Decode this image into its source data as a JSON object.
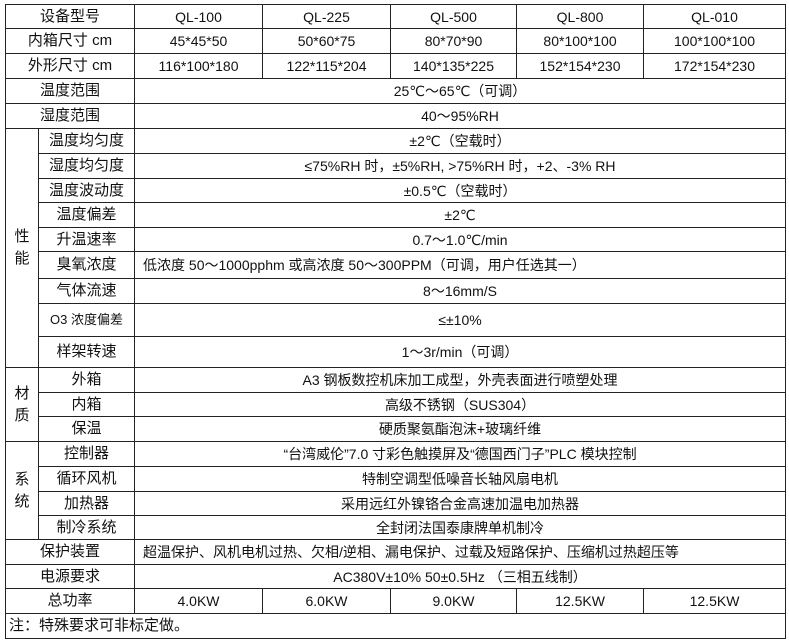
{
  "header": {
    "label": "设备型号",
    "models": [
      "QL-100",
      "QL-225",
      "QL-500",
      "QL-800",
      "QL-010"
    ]
  },
  "inner_size": {
    "label": "内箱尺寸 cm",
    "values": [
      "45*45*50",
      "50*60*75",
      "80*70*90",
      "80*100*100",
      "100*100*100"
    ]
  },
  "outer_size": {
    "label": "外形尺寸 cm",
    "values": [
      "116*100*180",
      "122*115*204",
      "140*135*225",
      "152*154*230",
      "172*154*230"
    ]
  },
  "temp_range": {
    "label": "温度范围",
    "value": "25℃～65℃（可调）"
  },
  "humidity_range": {
    "label": "湿度范围",
    "value": "40～95%RH"
  },
  "performance": {
    "group": "性能",
    "rows": [
      {
        "label": "温度均匀度",
        "value": "±2℃（空载时）"
      },
      {
        "label": "湿度均匀度",
        "value": "≤75%RH 时，±5%RH, >75%RH 时，+2、-3% RH"
      },
      {
        "label": "温度波动度",
        "value": "±0.5℃（空载时）"
      },
      {
        "label": "温度偏差",
        "value": "±2℃"
      },
      {
        "label": "升温速率",
        "value": "0.7～1.0℃/min"
      },
      {
        "label": "臭氧浓度",
        "value": "低浓度 50～1000pphm 或高浓度 50～300PPM（可调，用户任选其一）"
      },
      {
        "label": "气体流速",
        "value": "8～16mm/S"
      },
      {
        "label": "O3 浓度偏差",
        "value": "≤±10%"
      },
      {
        "label": "样架转速",
        "value": "1～3r/min（可调）"
      }
    ]
  },
  "material": {
    "group": "材质",
    "rows": [
      {
        "label": "外箱",
        "value": "A3 钢板数控机床加工成型，外壳表面进行喷塑处理"
      },
      {
        "label": "内箱",
        "value": "高级不锈钢（SUS304）"
      },
      {
        "label": "保温",
        "value": "硬质聚氨酯泡沫+玻璃纤维"
      }
    ]
  },
  "system": {
    "group": "系统",
    "rows": [
      {
        "label": "控制器",
        "value": "“台湾威伦”7.0 寸彩色触摸屏及“德国西门子”PLC 模块控制"
      },
      {
        "label": "循环风机",
        "value": "特制空调型低噪音长轴风扇电机"
      },
      {
        "label": "加热器",
        "value": "采用远红外镍铬合金高速加温电加热器"
      },
      {
        "label": "制冷系统",
        "value": "全封闭法国泰康牌单机制冷"
      }
    ]
  },
  "protection": {
    "label": "保护装置",
    "value": "超温保护、风机电机过热、欠相/逆相、漏电保护、过载及短路保护、压缩机过热超压等"
  },
  "power_req": {
    "label": "电源要求",
    "value": "AC380V±10%    50±0.5Hz （三相五线制）"
  },
  "total_power": {
    "label": "总功率",
    "values": [
      "4.0KW",
      "6.0KW",
      "9.0KW",
      "12.5KW",
      "12.5KW"
    ]
  },
  "note": "注：特殊要求可非标定做。"
}
